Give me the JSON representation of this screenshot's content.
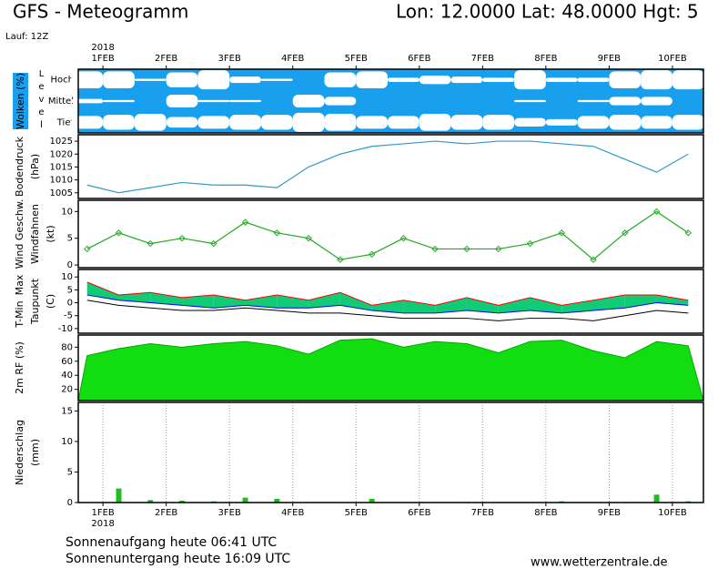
{
  "header": {
    "title": "GFS - Meteogramm",
    "location": "Lon: 12.0000 Lat: 48.0000 Hgt: 5",
    "run": "Lauf: 12Z"
  },
  "chart_data": [
    {
      "type": "cloud",
      "ylabel": "Wolken (%)",
      "level_label": "Level",
      "background": "#18a0ee",
      "color": "#ffffff",
      "x": [
        0.75,
        1.25,
        1.75,
        2.25,
        2.75,
        3.25,
        3.75,
        4.25,
        4.75,
        5.25,
        5.75,
        6.25,
        6.75,
        7.25,
        7.75,
        8.25,
        8.75,
        9.25,
        9.75,
        10.25
      ],
      "xlim": [
        0.61,
        10.49
      ],
      "year": "2018",
      "xticks": [
        {
          "value": 1,
          "label": "1FEB"
        },
        {
          "value": 2,
          "label": "2FEB"
        },
        {
          "value": 3,
          "label": "3FEB"
        },
        {
          "value": 4,
          "label": "4FEB"
        },
        {
          "value": 5,
          "label": "5FEB"
        },
        {
          "value": 6,
          "label": "6FEB"
        },
        {
          "value": 7,
          "label": "7FEB"
        },
        {
          "value": 8,
          "label": "8FEB"
        },
        {
          "value": 9,
          "label": "9FEB"
        },
        {
          "value": 10,
          "label": "10FEB"
        }
      ],
      "series": [
        {
          "name": "Hoch",
          "values": [
            80,
            80,
            10,
            70,
            90,
            30,
            10,
            0,
            70,
            80,
            20,
            40,
            30,
            20,
            90,
            20,
            20,
            80,
            90,
            90
          ]
        },
        {
          "name": "Mittel",
          "values": [
            20,
            10,
            0,
            60,
            10,
            10,
            0,
            60,
            40,
            0,
            0,
            0,
            0,
            0,
            10,
            0,
            10,
            40,
            40,
            0
          ]
        },
        {
          "name": "Tief",
          "values": [
            60,
            70,
            80,
            50,
            60,
            70,
            70,
            90,
            80,
            60,
            60,
            80,
            70,
            70,
            40,
            30,
            60,
            70,
            60,
            70
          ]
        }
      ]
    },
    {
      "type": "line",
      "ylabel": [
        "Bodendruck",
        "(hPa)"
      ],
      "color": "#3399cc",
      "x": [
        0.75,
        1.25,
        1.75,
        2.25,
        2.75,
        3.25,
        3.75,
        4.25,
        4.75,
        5.25,
        5.75,
        6.25,
        6.75,
        7.25,
        7.75,
        8.25,
        8.75,
        9.25,
        9.75,
        10.25
      ],
      "xlim": [
        0.61,
        10.49
      ],
      "ylim": [
        1002.8,
        1027.5
      ],
      "yticks": [
        1005,
        1010,
        1015,
        1020,
        1025
      ],
      "values": [
        1008,
        1005,
        1007,
        1009,
        1008,
        1008,
        1007,
        1015,
        1020,
        1023,
        1024,
        1025,
        1024,
        1025,
        1025,
        1024,
        1023,
        1018,
        1013,
        1020
      ]
    },
    {
      "type": "line",
      "markers": true,
      "ylabel": [
        "Windfahnen",
        "(kt)"
      ],
      "series_label": "Wind Geschw.",
      "color": "#22aa22",
      "x": [
        0.75,
        1.25,
        1.75,
        2.25,
        2.75,
        3.25,
        3.75,
        4.25,
        4.75,
        5.25,
        5.75,
        6.25,
        6.75,
        7.25,
        7.75,
        8.25,
        8.75,
        9.25,
        9.75,
        10.25
      ],
      "xlim": [
        0.61,
        10.49
      ],
      "ylim": [
        -0.5,
        12.1
      ],
      "yticks": [
        0,
        5,
        10
      ],
      "values": [
        3,
        6,
        4,
        5,
        4,
        8,
        6,
        5,
        1,
        2,
        5,
        3,
        3,
        3,
        4,
        6,
        1,
        6,
        10,
        6
      ]
    },
    {
      "type": "band",
      "ylabel": [
        "Taupunkt",
        "(C)"
      ],
      "fill": "#11cc77",
      "x": [
        0.75,
        1.25,
        1.75,
        2.25,
        2.75,
        3.25,
        3.75,
        4.25,
        4.75,
        5.25,
        5.75,
        6.25,
        6.75,
        7.25,
        7.75,
        8.25,
        8.75,
        9.25,
        9.75,
        10.25
      ],
      "xlim": [
        0.61,
        10.49
      ],
      "ylim": [
        -11.8,
        12.9
      ],
      "yticks": [
        -10,
        -5,
        0,
        5,
        10
      ],
      "series": [
        {
          "name": "T-Min",
          "color": "#0000ff",
          "values": [
            3,
            1,
            0,
            -1,
            -2,
            -1,
            -2,
            -2,
            -1,
            -3,
            -4,
            -4,
            -3,
            -4,
            -3,
            -4,
            -3,
            -2,
            0,
            -1
          ]
        },
        {
          "name": "Max",
          "color": "#ff0000",
          "values": [
            8,
            3,
            4,
            2,
            3,
            1,
            3,
            1,
            4,
            -1,
            1,
            -1,
            2,
            -1,
            2,
            -1,
            1,
            3,
            3,
            1
          ]
        },
        {
          "name": "Taupunkt",
          "color": "#000000",
          "values": [
            1,
            -1,
            -2,
            -3,
            -3,
            -2,
            -3,
            -4,
            -4,
            -5,
            -6,
            -6,
            -6,
            -7,
            -6,
            -6,
            -7,
            -5,
            -3,
            -4
          ]
        }
      ]
    },
    {
      "type": "area",
      "ylabel": [
        "2m RF (%)"
      ],
      "color": "#11dd11",
      "x": [
        0.75,
        1.25,
        1.75,
        2.25,
        2.75,
        3.25,
        3.75,
        4.25,
        4.75,
        5.25,
        5.75,
        6.25,
        6.75,
        7.25,
        7.75,
        8.25,
        8.75,
        9.25,
        9.75,
        10.25
      ],
      "xlim": [
        0.61,
        10.49
      ],
      "ylim": [
        4,
        97.3
      ],
      "yticks": [
        20,
        40,
        60,
        80
      ],
      "values": [
        68,
        78,
        85,
        80,
        85,
        88,
        82,
        70,
        90,
        92,
        80,
        88,
        85,
        72,
        88,
        90,
        75,
        65,
        88,
        82
      ]
    },
    {
      "type": "bar",
      "ylabel": [
        "Niederschlag",
        "(mm)"
      ],
      "color": "#22bb22",
      "grid": true,
      "x": [
        0.75,
        1.25,
        1.75,
        2.25,
        2.75,
        3.25,
        3.75,
        4.25,
        4.75,
        5.25,
        5.75,
        6.25,
        6.75,
        7.25,
        7.75,
        8.25,
        8.75,
        9.25,
        9.75,
        10.25
      ],
      "xlim": [
        0.61,
        10.49
      ],
      "ylim": [
        0,
        16.4
      ],
      "yticks": [
        0,
        5,
        10,
        15
      ],
      "year": "2018",
      "xticks": [
        {
          "value": 1,
          "label": "1FEB"
        },
        {
          "value": 2,
          "label": "2FEB"
        },
        {
          "value": 3,
          "label": "3FEB"
        },
        {
          "value": 4,
          "label": "4FEB"
        },
        {
          "value": 5,
          "label": "5FEB"
        },
        {
          "value": 6,
          "label": "6FEB"
        },
        {
          "value": 7,
          "label": "7FEB"
        },
        {
          "value": 8,
          "label": "8FEB"
        },
        {
          "value": 9,
          "label": "9FEB"
        },
        {
          "value": 10,
          "label": "10FEB"
        }
      ],
      "values": [
        0,
        2.3,
        0.4,
        0.3,
        0.2,
        0.8,
        0.6,
        0,
        0,
        0.6,
        0,
        0,
        0.1,
        0,
        0,
        0.2,
        0,
        0,
        1.3,
        0.2
      ]
    }
  ],
  "footer": {
    "sunrise": "Sonnenaufgang heute 06:41 UTC",
    "sunset": "Sonnenuntergang heute 16:09 UTC",
    "site": "www.wetterzentrale.de"
  }
}
